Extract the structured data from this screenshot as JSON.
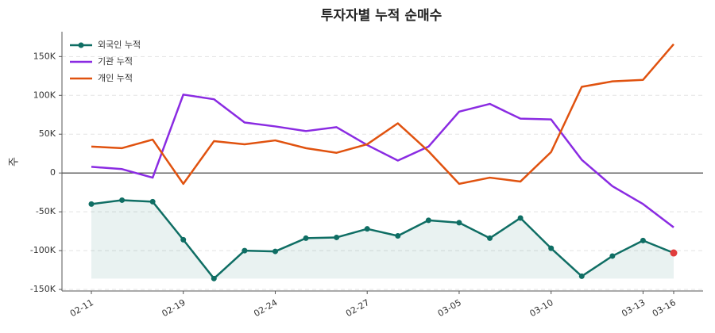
{
  "chart_data": {
    "type": "line",
    "title": "투자자별 누적 순매수",
    "y_label": "주",
    "categories": [
      "02-11",
      null,
      null,
      "02-19",
      null,
      null,
      "02-24",
      null,
      null,
      "02-27",
      null,
      null,
      "03-05",
      null,
      null,
      "03-10",
      null,
      null,
      "03-13",
      "03-16"
    ],
    "series": [
      {
        "name": "외국인 누적",
        "color": "#0f6e64",
        "values": [
          -40000,
          -35000,
          -37000,
          -86000,
          -136000,
          -100000,
          -101000,
          -84000,
          -83000,
          -72000,
          -81000,
          -61000,
          -64000,
          -84000,
          -58000,
          -97000,
          -133000,
          -107000,
          -87000,
          -103000
        ]
      },
      {
        "name": "기관 누적",
        "color": "#8a2be2",
        "values": [
          8000,
          5000,
          -6000,
          101000,
          95000,
          65000,
          60000,
          54000,
          59000,
          36000,
          16000,
          34000,
          79000,
          89000,
          70000,
          69000,
          17000,
          -17000,
          -40000,
          -70000
        ]
      },
      {
        "name": "개인 누적",
        "color": "#e0520f",
        "values": [
          34000,
          32000,
          43000,
          -14000,
          41000,
          37000,
          42000,
          32000,
          26000,
          37000,
          64000,
          28000,
          -14000,
          -6000,
          -11000,
          27000,
          111000,
          118000,
          120000,
          166000
        ]
      }
    ],
    "ylim": [
      -152000,
      182000
    ],
    "yticks": [
      {
        "value": -150000,
        "label": "-150K"
      },
      {
        "value": -100000,
        "label": "-100K"
      },
      {
        "value": -50000,
        "label": "-50K"
      },
      0,
      {
        "value": 50000,
        "label": "50K"
      },
      {
        "value": 100000,
        "label": "100K"
      },
      {
        "value": 150000,
        "label": "150K"
      }
    ],
    "grid": true,
    "legend": "upper left"
  }
}
